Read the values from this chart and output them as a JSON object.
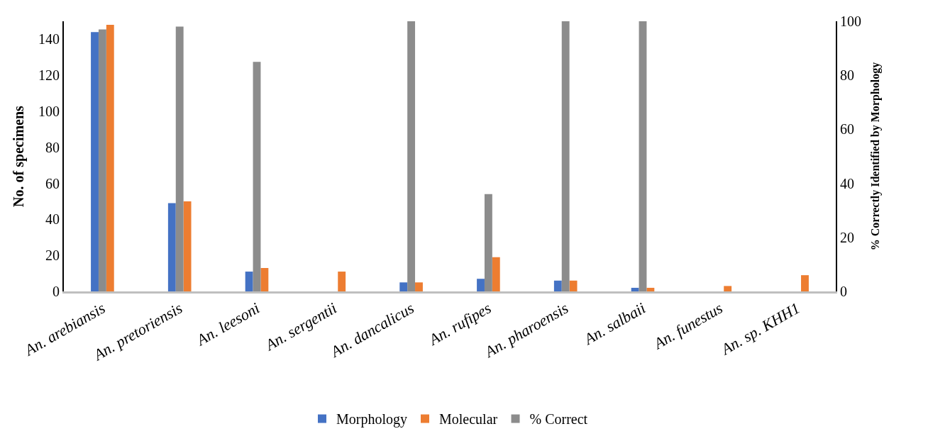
{
  "chart_data": {
    "type": "bar",
    "categories": [
      "An. arebiansis",
      "An. pretoriensis",
      "An. leesoni",
      "An. sergentii",
      "An. dancalicus",
      "An. rufipes",
      "An. pharoensis",
      "An. salbaii",
      "An. funestus",
      "An. sp. KHH1"
    ],
    "series": [
      {
        "name": "Morphology",
        "color": "#4472c4",
        "values": [
          144,
          49,
          11,
          0,
          5,
          7,
          6,
          2,
          0,
          0
        ]
      },
      {
        "name": "Molecular",
        "color": "#ed7d31",
        "values": [
          148,
          50,
          13,
          11,
          5,
          19,
          6,
          2,
          3,
          9
        ]
      },
      {
        "name": "% Correct",
        "color": "#8c8c8c",
        "axis": "y2",
        "values": [
          97,
          98,
          85,
          null,
          100,
          36,
          100,
          100,
          null,
          null
        ]
      }
    ],
    "ylabel": "No. of specimens",
    "y2label": "% Correctly Identified by Morphology",
    "ylim": [
      0,
      150
    ],
    "yticks": [
      0,
      20,
      40,
      60,
      80,
      100,
      120,
      140
    ],
    "y2lim": [
      0,
      100
    ],
    "y2ticks": [
      0,
      20,
      40,
      60,
      80,
      100
    ],
    "legend": "bottom"
  }
}
